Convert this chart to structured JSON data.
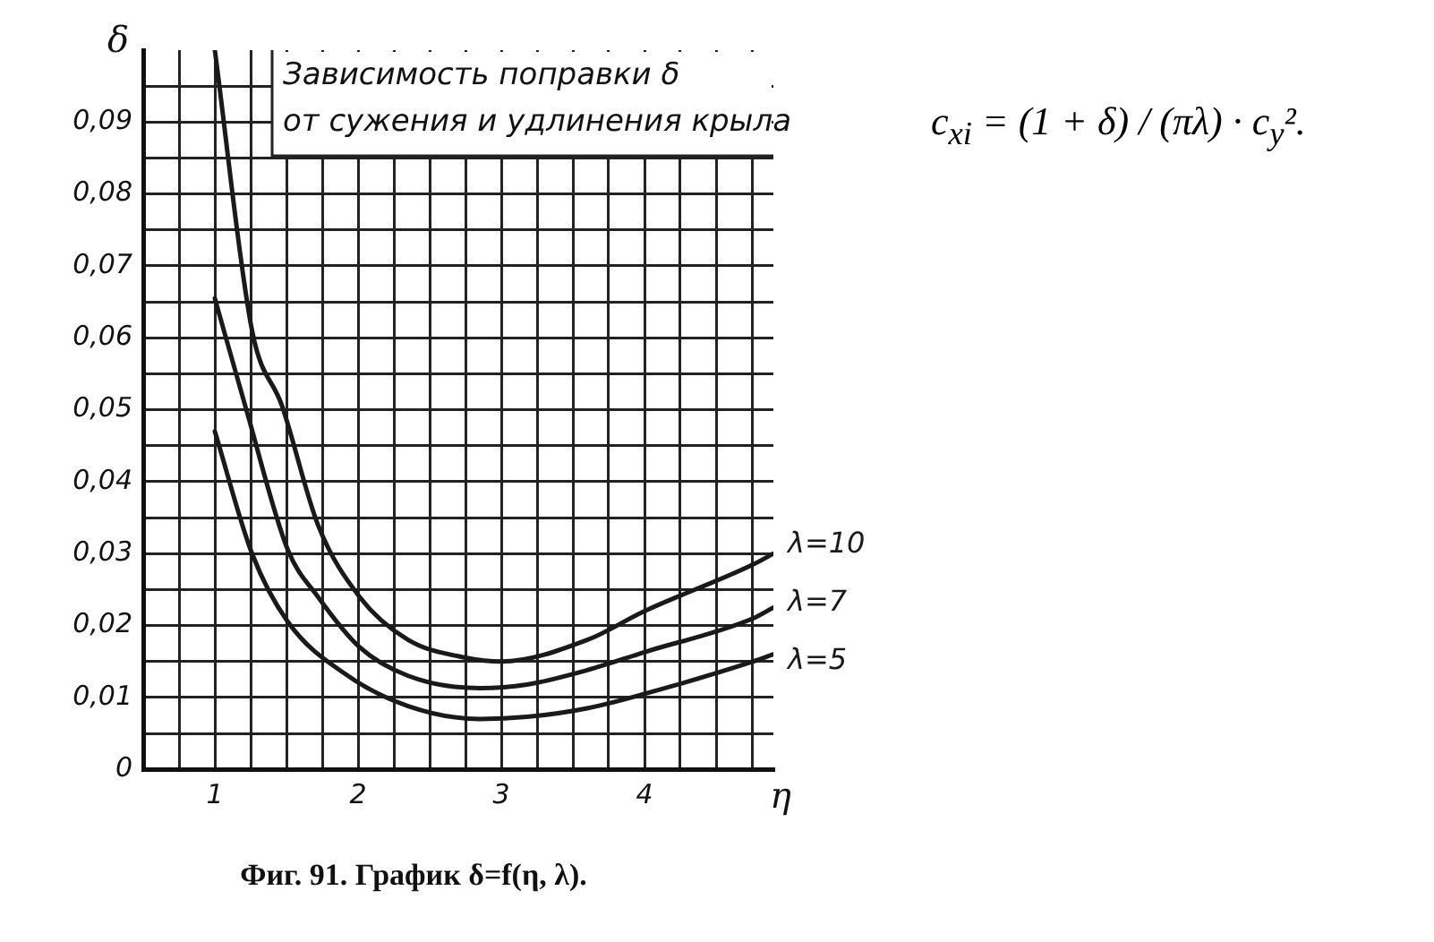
{
  "chart_data": {
    "type": "line",
    "title": "Фиг. 91. График δ=f(η, λ).",
    "xlabel": "η",
    "ylabel": "δ",
    "annotations": [
      "Зависимость поправки δ\nот сужения и удлинения крыла",
      "c$_{xi}$ = (1 + δ) / (πλ) · c$_{y}$²."
    ],
    "xlim": [
      0.5,
      4.9
    ],
    "ylim": [
      0,
      0.1
    ],
    "xticks": [
      {
        "value": 0.75,
        "label": null
      },
      1,
      {
        "value": 1.25,
        "label": null
      },
      {
        "value": 1.5,
        "label": null
      },
      {
        "value": 1.75,
        "label": null
      },
      2,
      {
        "value": 2.25,
        "label": null
      },
      {
        "value": 2.5,
        "label": null
      },
      {
        "value": 2.75,
        "label": null
      },
      3,
      {
        "value": 3.25,
        "label": null
      },
      {
        "value": 3.5,
        "label": null
      },
      {
        "value": 3.75,
        "label": null
      },
      4,
      {
        "value": 4.25,
        "label": null
      },
      {
        "value": 4.5,
        "label": null
      },
      {
        "value": 4.75,
        "label": null
      }
    ],
    "yticks": [
      0,
      {
        "value": 0.005,
        "label": null
      },
      {
        "value": 0.01,
        "label": "0,01"
      },
      {
        "value": 0.015,
        "label": null
      },
      {
        "value": 0.02,
        "label": "0,02"
      },
      {
        "value": 0.025,
        "label": null
      },
      {
        "value": 0.03,
        "label": "0,03"
      },
      {
        "value": 0.035,
        "label": null
      },
      {
        "value": 0.04,
        "label": "0,04"
      },
      {
        "value": 0.045,
        "label": null
      },
      {
        "value": 0.05,
        "label": "0,05"
      },
      {
        "value": 0.055,
        "label": null
      },
      {
        "value": 0.06,
        "label": "0,06"
      },
      {
        "value": 0.065,
        "label": null
      },
      {
        "value": 0.07,
        "label": "0,07"
      },
      {
        "value": 0.075,
        "label": null
      },
      {
        "value": 0.08,
        "label": "0,08"
      },
      {
        "value": 0.085,
        "label": null
      },
      {
        "value": 0.09,
        "label": "0,09"
      },
      {
        "value": 0.095,
        "label": null
      }
    ],
    "grid": true,
    "marker": "none",
    "line_style": "solid",
    "legend": false,
    "series": [
      {
        "name": "λ=10",
        "color": "#1a1a1a",
        "x": [
          1.0,
          1.26,
          1.47,
          1.72,
          2.01,
          2.35,
          2.76,
          3.0,
          3.6,
          4.0,
          4.76,
          4.9
        ],
        "values": [
          0.1,
          0.061,
          0.0505,
          0.034,
          0.024,
          0.018,
          0.0155,
          0.015,
          0.018,
          0.022,
          0.0285,
          0.03
        ]
      },
      {
        "name": "λ=7",
        "color": "#1a1a1a",
        "x": [
          1.0,
          1.22,
          1.51,
          1.72,
          2.01,
          2.35,
          2.85,
          3.18,
          3.6,
          4.0,
          4.76,
          4.9
        ],
        "values": [
          0.0655,
          0.05,
          0.0305,
          0.024,
          0.017,
          0.013,
          0.0113,
          0.0118,
          0.0138,
          0.0163,
          0.021,
          0.0225
        ]
      },
      {
        "name": "λ=5",
        "color": "#1a1a1a",
        "x": [
          1.0,
          1.26,
          1.51,
          1.93,
          2.35,
          2.85,
          3.18,
          3.6,
          4.0,
          4.76,
          4.9
        ],
        "values": [
          0.047,
          0.03,
          0.0205,
          0.013,
          0.0088,
          0.007,
          0.0073,
          0.0085,
          0.0105,
          0.015,
          0.016
        ]
      }
    ]
  }
}
